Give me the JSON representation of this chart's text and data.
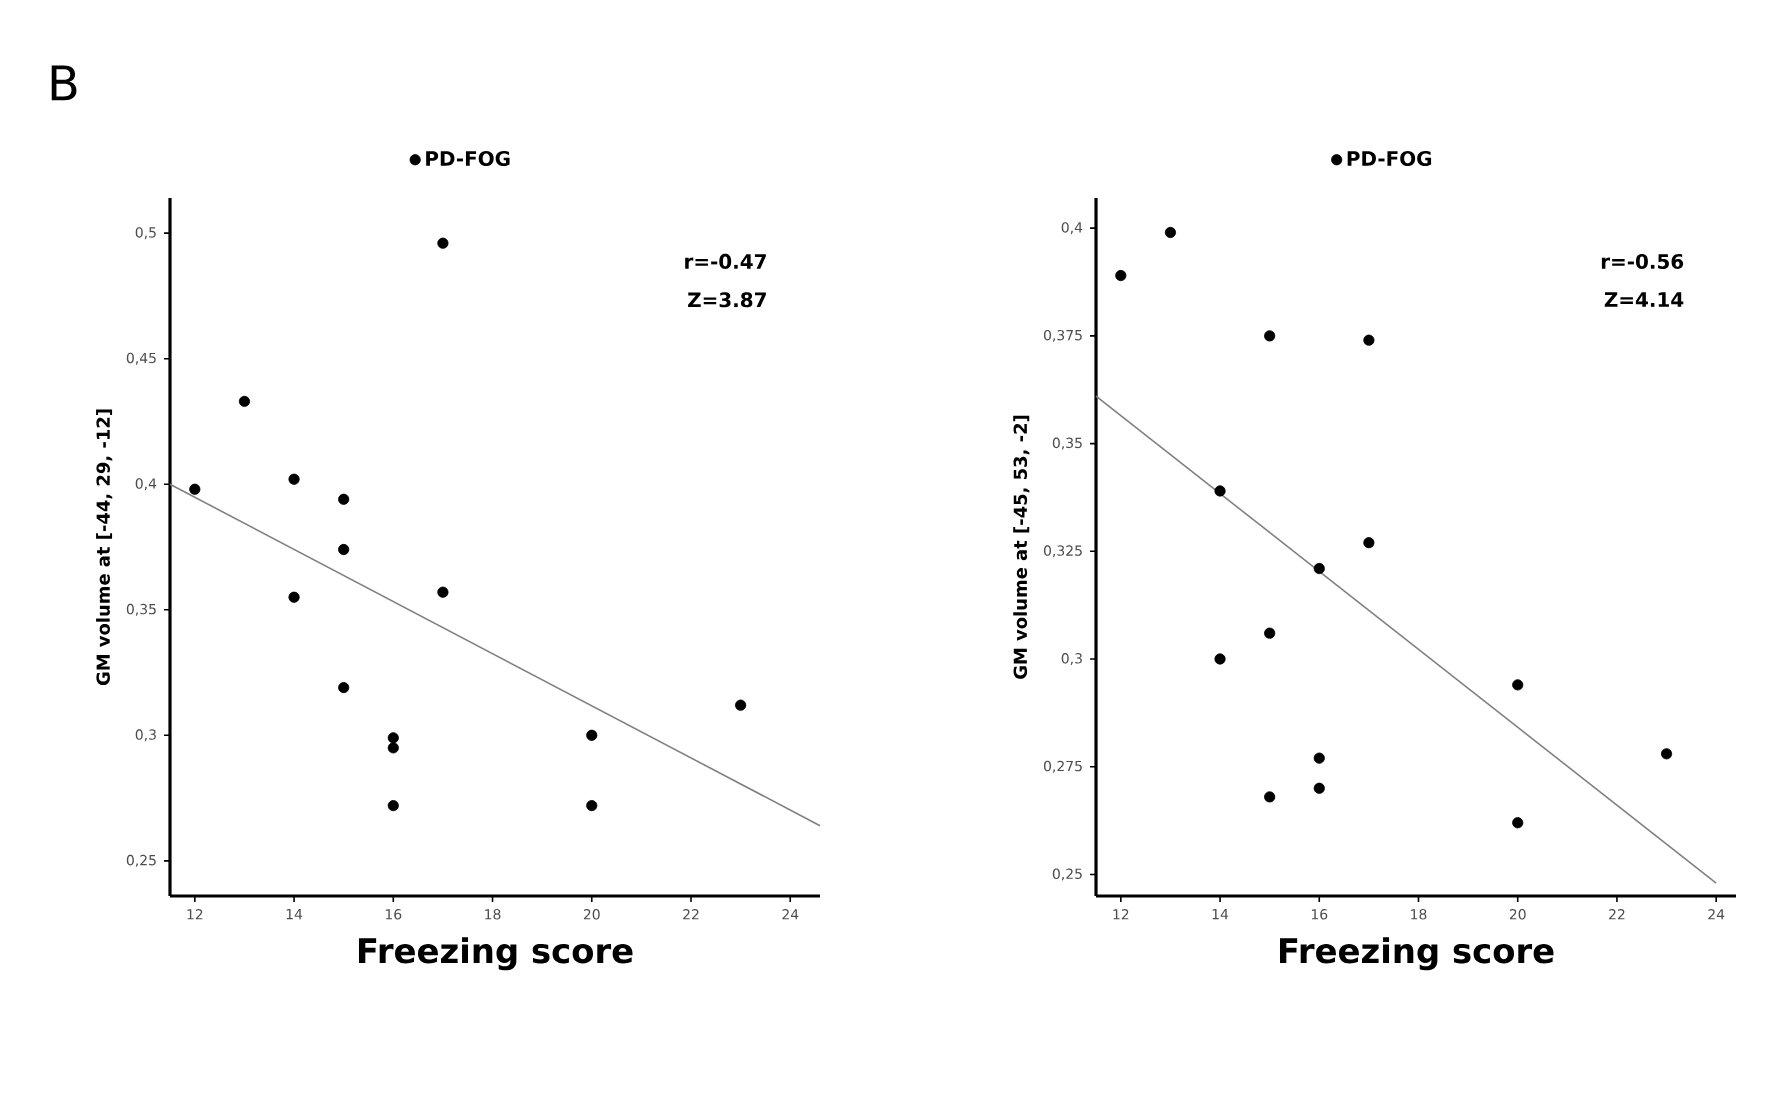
{
  "chart_data": [
    {
      "type": "scatter",
      "title": "B",
      "xlabel": "Freezing score",
      "ylabel": "GM volume at [-44, 29, -12]",
      "legend": "top",
      "xlim": [
        11.5,
        24.6
      ],
      "xticks": [
        12,
        14,
        16,
        18,
        20,
        22,
        24
      ],
      "ylim": [
        0.236,
        0.514
      ],
      "yticks": [
        {
          "value": 0.25,
          "label": "0,25"
        },
        {
          "value": 0.3,
          "label": "0,3"
        },
        {
          "value": 0.35,
          "label": "0,35"
        },
        {
          "value": 0.4,
          "label": "0,4"
        },
        {
          "value": 0.45,
          "label": "0,45"
        },
        {
          "value": 0.5,
          "label": "0,5"
        }
      ],
      "annotations": [
        "r=-0.47",
        "Z=3.87"
      ],
      "series": [
        {
          "name": "PD-FOG",
          "marker": "circle",
          "color": "#000000",
          "x": [
            12,
            13,
            14,
            14,
            15,
            15,
            15,
            16,
            16,
            16,
            17,
            17,
            20,
            20,
            23
          ],
          "values": [
            0.398,
            0.433,
            0.402,
            0.355,
            0.394,
            0.374,
            0.319,
            0.299,
            0.295,
            0.272,
            0.496,
            0.357,
            0.3,
            0.272,
            0.312
          ]
        },
        {
          "type": "line",
          "marker": "none",
          "color": "#808080",
          "x": [
            11.5,
            24.6
          ],
          "values": [
            0.4,
            0.264
          ]
        }
      ]
    },
    {
      "type": "scatter",
      "xlabel": "Freezing score",
      "ylabel": "GM volume at [-45, 53, -2]",
      "legend": "top",
      "xlim": [
        11.5,
        24.4
      ],
      "xticks": [
        12,
        14,
        16,
        18,
        20,
        22,
        24
      ],
      "ylim": [
        0.245,
        0.407
      ],
      "yticks": [
        {
          "value": 0.25,
          "label": "0,25"
        },
        {
          "value": 0.275,
          "label": "0,275"
        },
        {
          "value": 0.3,
          "label": "0,3"
        },
        {
          "value": 0.325,
          "label": "0,325"
        },
        {
          "value": 0.35,
          "label": "0,35"
        },
        {
          "value": 0.375,
          "label": "0,375"
        },
        {
          "value": 0.4,
          "label": "0,4"
        }
      ],
      "annotations": [
        "r=-0.56",
        "Z=4.14"
      ],
      "series": [
        {
          "name": "PD-FOG",
          "marker": "circle",
          "color": "#000000",
          "x": [
            12,
            13,
            15,
            17,
            14,
            17,
            16,
            15,
            14,
            20,
            23,
            16,
            16,
            15,
            20
          ],
          "values": [
            0.389,
            0.399,
            0.375,
            0.374,
            0.339,
            0.327,
            0.321,
            0.306,
            0.3,
            0.294,
            0.278,
            0.277,
            0.27,
            0.268,
            0.262
          ]
        },
        {
          "type": "line",
          "marker": "none",
          "color": "#808080",
          "x": [
            11.5,
            24.0
          ],
          "values": [
            0.361,
            0.248
          ]
        }
      ]
    }
  ]
}
